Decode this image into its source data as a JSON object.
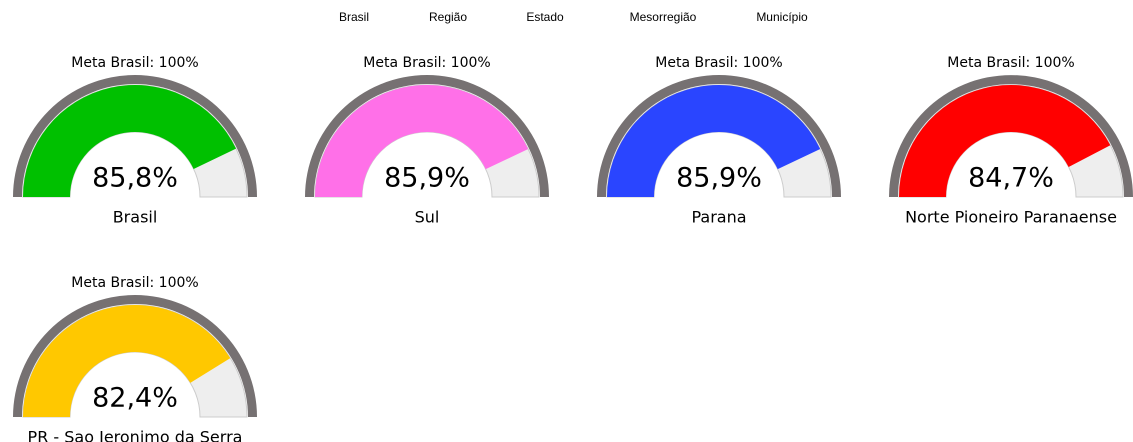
{
  "tabs": [
    "Brasil",
    "Região",
    "Estado",
    "Mesorregião",
    "Município"
  ],
  "chart_data": [
    {
      "type": "gauge",
      "title": "Meta Brasil: 100%",
      "label": "Brasil",
      "values": [
        85.8
      ],
      "value_labels": [
        "85,8%"
      ],
      "color": "#00c000",
      "ylim": [
        0,
        100
      ]
    },
    {
      "type": "gauge",
      "title": "Meta Brasil: 100%",
      "label": "Sul",
      "values": [
        85.9
      ],
      "value_labels": [
        "85,9%"
      ],
      "color": "#ff70e8",
      "ylim": [
        0,
        100
      ]
    },
    {
      "type": "gauge",
      "title": "Meta Brasil: 100%",
      "label": "Parana",
      "values": [
        85.9
      ],
      "value_labels": [
        "85,9%"
      ],
      "color": "#2a45ff",
      "ylim": [
        0,
        100
      ]
    },
    {
      "type": "gauge",
      "title": "Meta Brasil: 100%",
      "label": "Norte Pioneiro Paranaense",
      "values": [
        84.7
      ],
      "value_labels": [
        "84,7%"
      ],
      "color": "#ff0000",
      "ylim": [
        0,
        100
      ]
    },
    {
      "type": "gauge",
      "title": "Meta Brasil: 100%",
      "label": "PR - Sao Jeronimo da Serra",
      "values": [
        82.4
      ],
      "value_labels": [
        "82,4%"
      ],
      "color": "#ffc800",
      "ylim": [
        0,
        100
      ]
    }
  ]
}
